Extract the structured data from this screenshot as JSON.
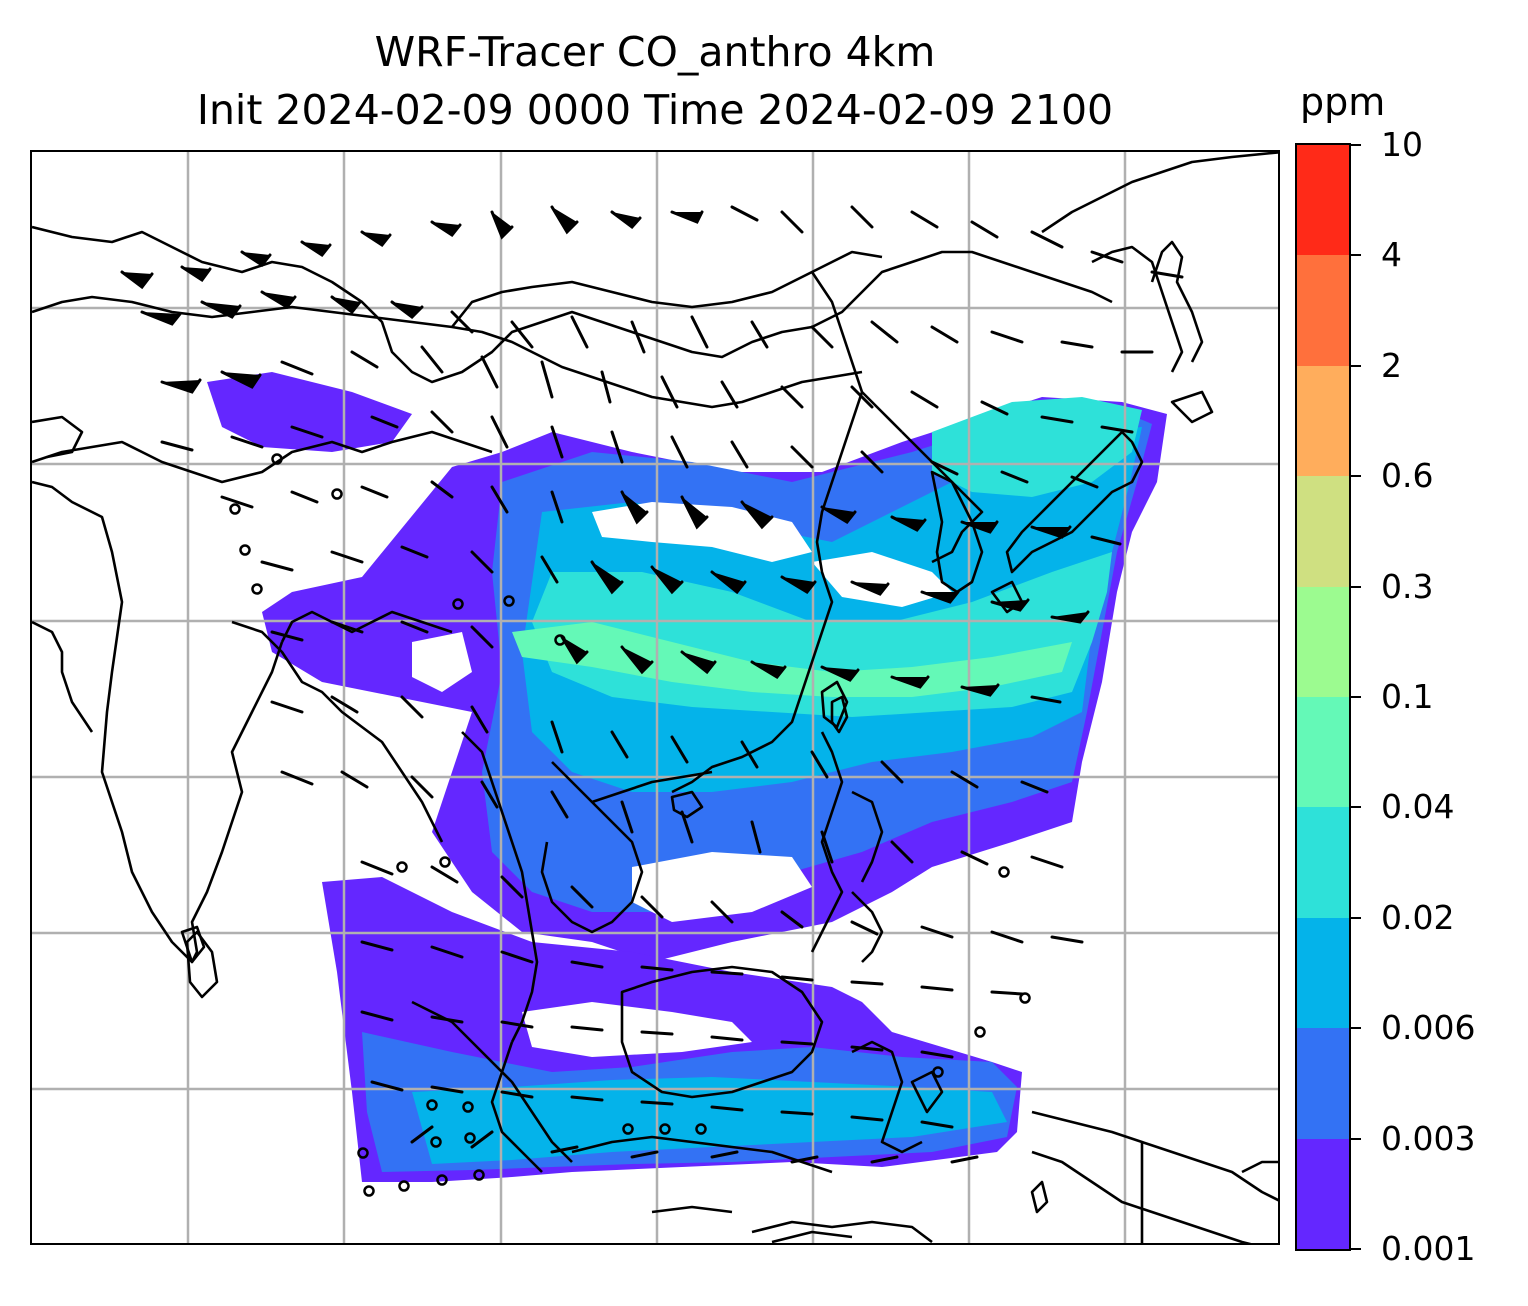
{
  "title": {
    "line1": "WRF-Tracer CO_anthro 4km",
    "line2": "Init 2024-02-09 0000 Time 2024-02-09 2100"
  },
  "colorbar": {
    "unit": "ppm",
    "levels": [
      "0.001",
      "0.003",
      "0.006",
      "0.02",
      "0.04",
      "0.1",
      "0.3",
      "0.6",
      "2",
      "4",
      "10"
    ],
    "colors": [
      "#6427ff",
      "#3372f4",
      "#04b3ea",
      "#2ee1d9",
      "#64f9b7",
      "#9cfb90",
      "#cfe081",
      "#ffad5c",
      "#ff703c",
      "#ff2a18"
    ]
  },
  "map": {
    "field": "CO_anthro",
    "overlays": [
      "coastlines",
      "country-borders",
      "lat-lon-gridlines",
      "wind-barbs"
    ],
    "gridlines": true
  }
}
